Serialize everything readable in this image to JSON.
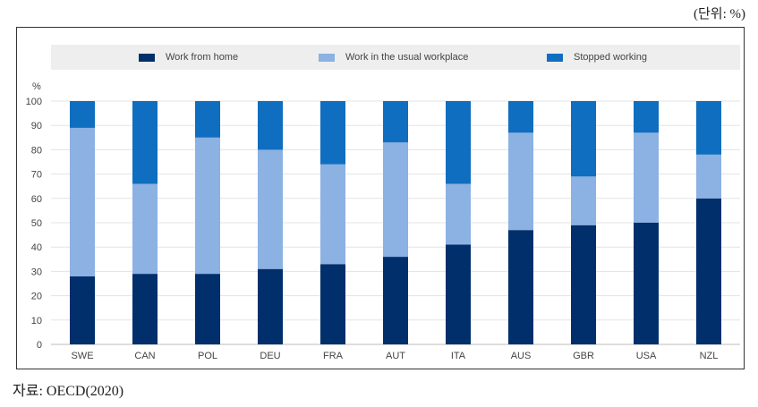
{
  "unit_note": "(단위: %)",
  "source_note": "자료: OECD(2020)",
  "chart_data": {
    "type": "bar",
    "stacked": true,
    "ylabel": "%",
    "ylim": [
      0,
      100
    ],
    "yticks": [
      0,
      10,
      20,
      30,
      40,
      50,
      60,
      70,
      80,
      90,
      100
    ],
    "grid": true,
    "legend_position": "top",
    "categories": [
      "SWE",
      "CAN",
      "POL",
      "DEU",
      "FRA",
      "AUT",
      "ITA",
      "AUS",
      "GBR",
      "USA",
      "NZL"
    ],
    "series": [
      {
        "name": "Work from home",
        "color": "#002f6c",
        "values": [
          28,
          29,
          29,
          31,
          33,
          36,
          41,
          47,
          49,
          50,
          60
        ]
      },
      {
        "name": "Work in the usual workplace",
        "color": "#8cb1e3",
        "values": [
          61,
          37,
          56,
          49,
          41,
          47,
          25,
          40,
          20,
          37,
          18
        ]
      },
      {
        "name": "Stopped working",
        "color": "#0f6ebf",
        "values": [
          11,
          34,
          15,
          20,
          26,
          17,
          34,
          13,
          31,
          13,
          22
        ]
      }
    ]
  }
}
